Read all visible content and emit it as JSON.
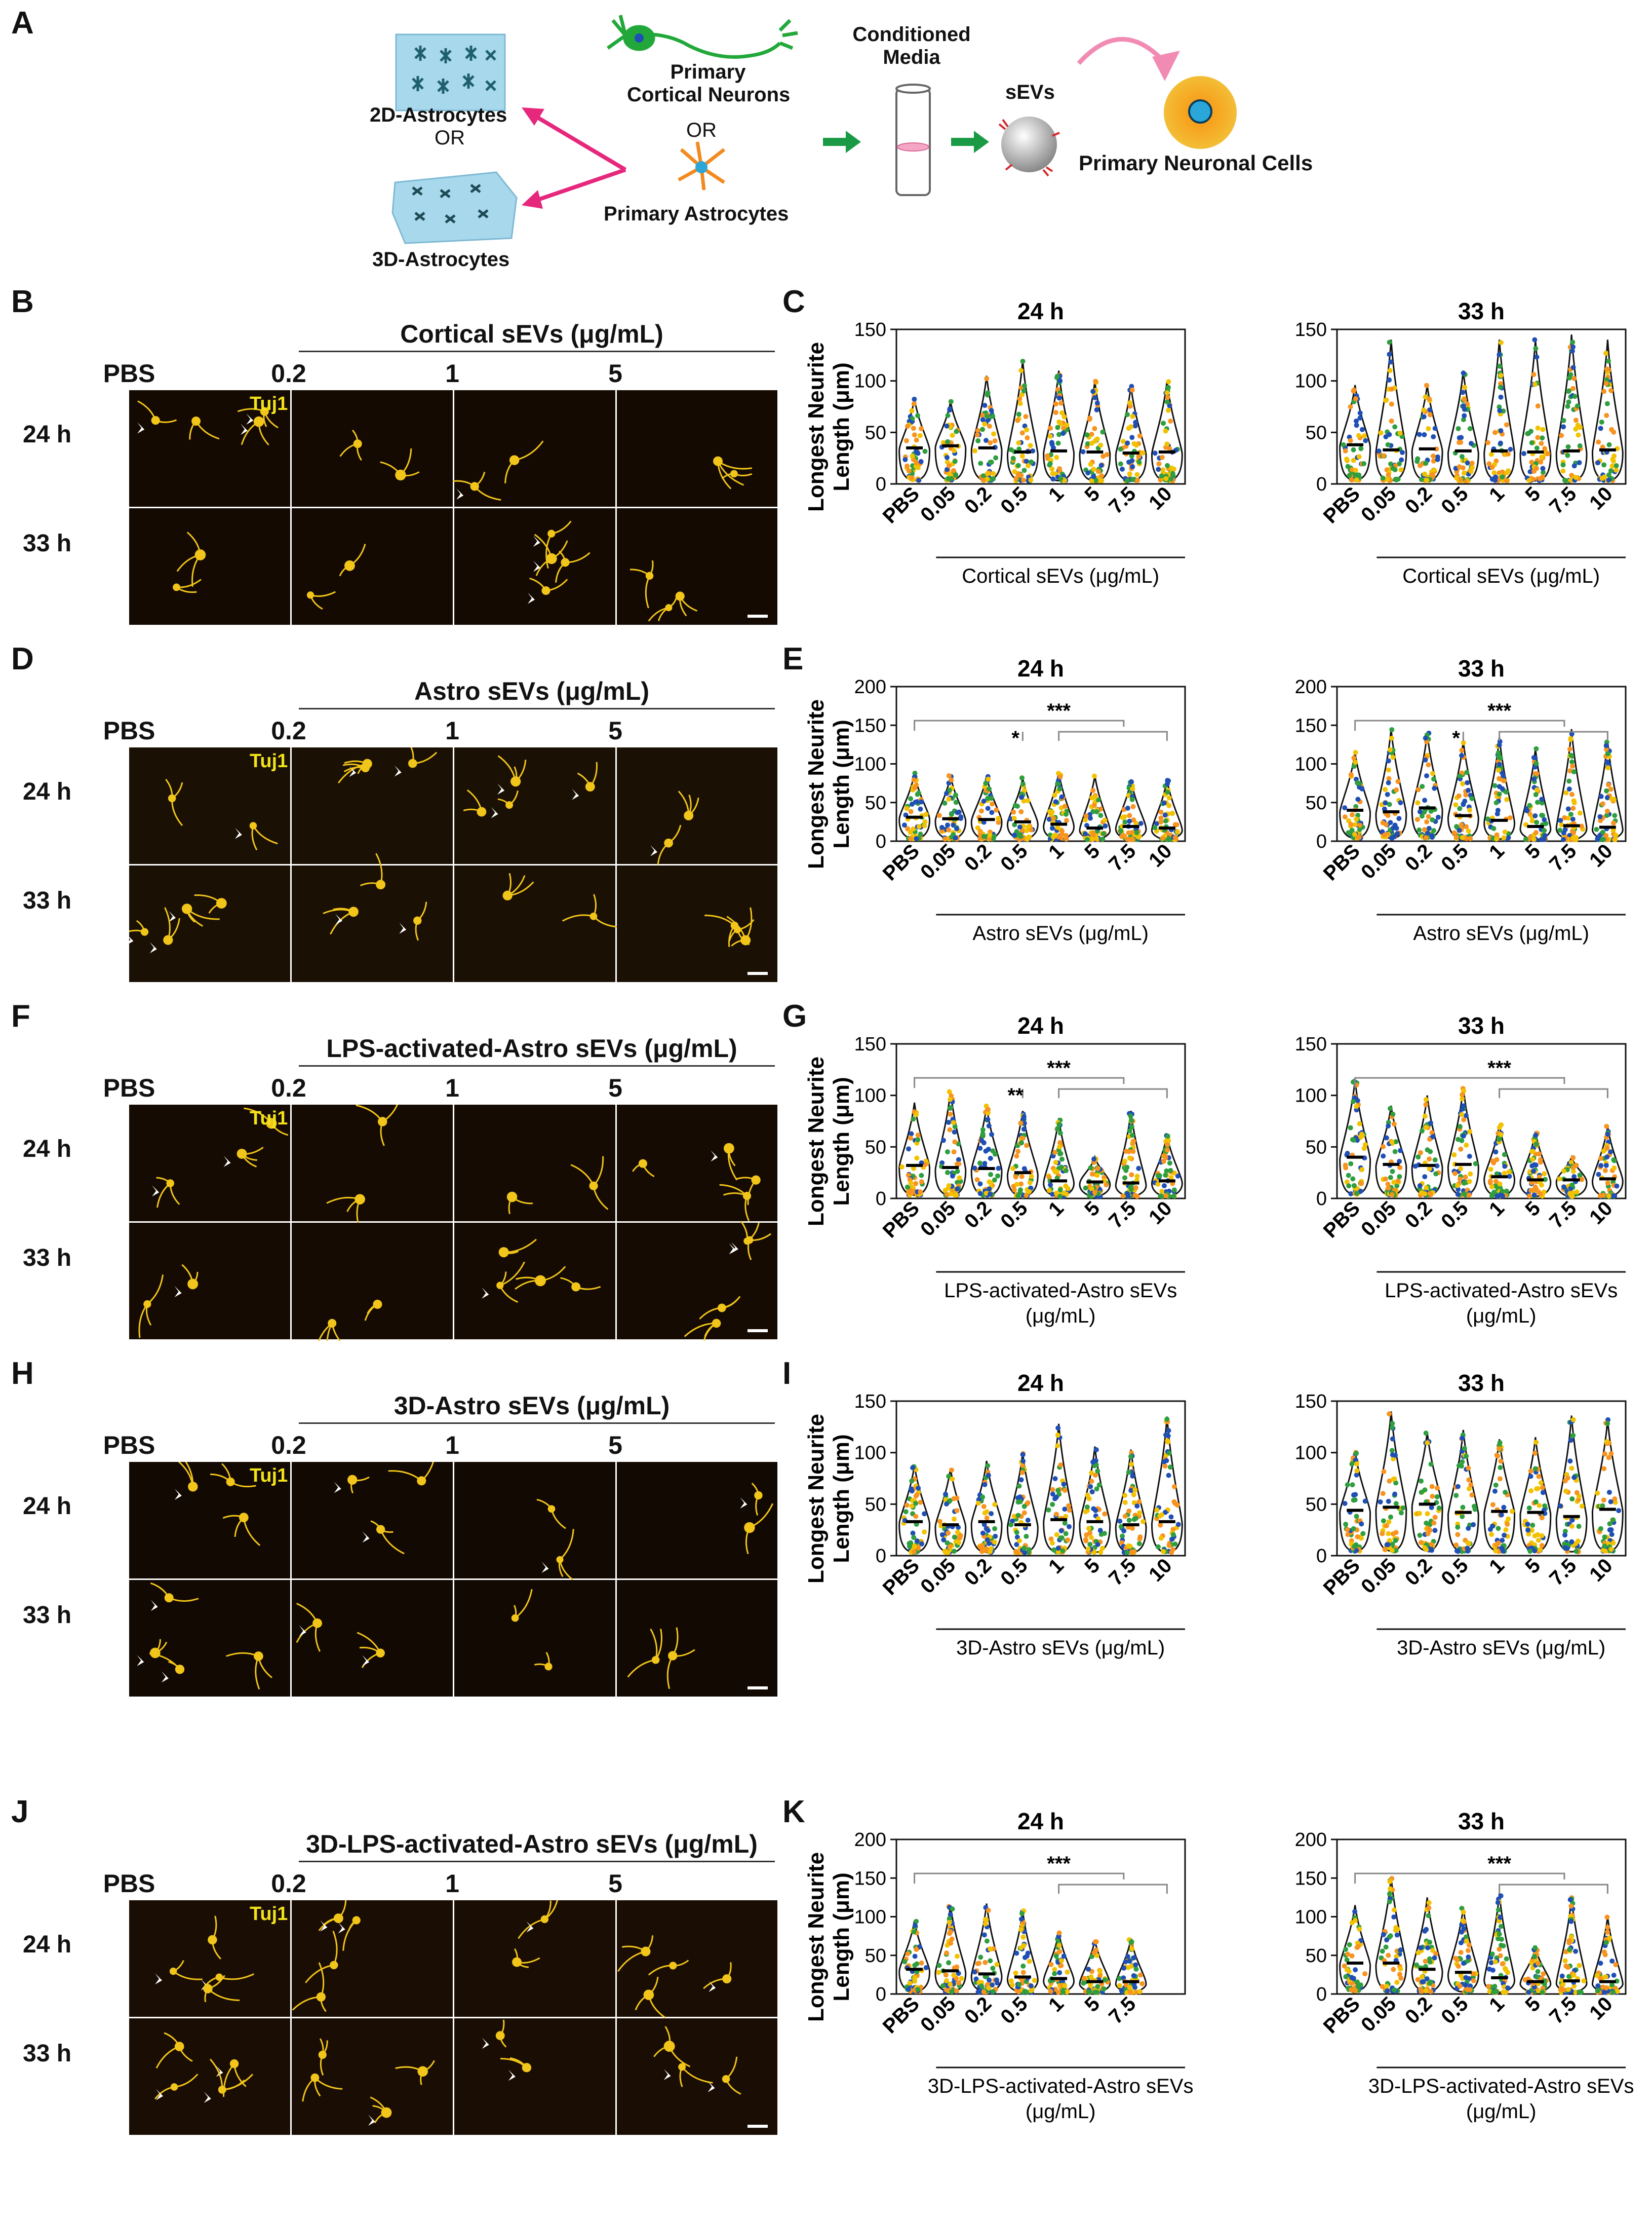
{
  "panels": {
    "A": "A",
    "B": "B",
    "C": "C",
    "D": "D",
    "E": "E",
    "F": "F",
    "G": "G",
    "H": "H",
    "I": "I",
    "J": "J",
    "K": "K"
  },
  "schematic": {
    "astro2d": "2D-Astrocytes",
    "or1": "OR",
    "astro3d": "3D-Astrocytes",
    "neurons": "Primary\nCortical Neurons",
    "or2": "OR",
    "primary_astro": "Primary Astrocytes",
    "conditioned": "Conditioned\nMedia",
    "sevs": "sEVs",
    "target": "Primary Neuronal Cells"
  },
  "micro": {
    "stain": "Tuj1",
    "pbs": "PBS",
    "conc": [
      "0.2",
      "1",
      "5"
    ],
    "rows": [
      "24 h",
      "33 h"
    ]
  },
  "rows": [
    {
      "group_title": "Cortical sEVs (μg/mL)",
      "image_bg": "#140a02"
    },
    {
      "group_title": "Astro sEVs (μg/mL)",
      "image_bg": "#1a1004"
    },
    {
      "group_title": "LPS-activated-Astro sEVs (μg/mL)",
      "image_bg": "#150b02"
    },
    {
      "group_title": "3D-Astro sEVs (μg/mL)",
      "image_bg": "#120902"
    },
    {
      "group_title": "3D-LPS-activated-Astro sEVs (μg/mL)",
      "image_bg": "#1a0d03"
    }
  ],
  "chart_data": [
    {
      "type": "violin",
      "panel": "C",
      "title": "24 h",
      "ylabel": "Longest Neurite\nLength (μm)",
      "ylim": [
        0,
        150
      ],
      "yticks": [
        0,
        50,
        100,
        150
      ],
      "categories": [
        "PBS",
        "0.05",
        "0.2",
        "0.5",
        "1",
        "5",
        "7.5",
        "10"
      ],
      "xgroup_label": "Cortical sEVs (μg/mL)",
      "medians": [
        35,
        37,
        35,
        31,
        32,
        31,
        30,
        31
      ],
      "max": [
        83,
        80,
        105,
        120,
        110,
        100,
        95,
        100
      ],
      "significance": []
    },
    {
      "type": "violin",
      "panel": "C",
      "title": "33 h",
      "ylim": [
        0,
        150
      ],
      "yticks": [
        0,
        50,
        100,
        150
      ],
      "categories": [
        "PBS",
        "0.05",
        "0.2",
        "0.5",
        "1",
        "5",
        "7.5",
        "10"
      ],
      "xgroup_label": "Cortical sEVs (μg/mL)",
      "medians": [
        38,
        33,
        34,
        32,
        32,
        31,
        32,
        33
      ],
      "max": [
        96,
        140,
        96,
        110,
        140,
        140,
        145,
        140
      ],
      "significance": []
    },
    {
      "type": "violin",
      "panel": "E",
      "title": "24 h",
      "ylabel": "Longest Neurite\nLength (μm)",
      "ylim": [
        0,
        200
      ],
      "yticks": [
        0,
        50,
        100,
        150,
        200
      ],
      "categories": [
        "PBS",
        "0.05",
        "0.2",
        "0.5",
        "1",
        "5",
        "7.5",
        "10"
      ],
      "xgroup_label": "Astro sEVs (μg/mL)",
      "medians": [
        31,
        29,
        28,
        25,
        22,
        17,
        19,
        17
      ],
      "max": [
        88,
        85,
        85,
        82,
        90,
        85,
        80,
        80
      ],
      "significance": [
        "*",
        "***"
      ]
    },
    {
      "type": "violin",
      "panel": "E",
      "title": "33 h",
      "ylim": [
        0,
        200
      ],
      "yticks": [
        0,
        50,
        100,
        150,
        200
      ],
      "categories": [
        "PBS",
        "0.05",
        "0.2",
        "0.5",
        "1",
        "5",
        "7.5",
        "10"
      ],
      "xgroup_label": "Astro sEVs (μg/mL)",
      "medians": [
        40,
        38,
        43,
        33,
        27,
        19,
        20,
        18
      ],
      "max": [
        115,
        145,
        140,
        130,
        135,
        120,
        145,
        130
      ],
      "significance": [
        "*",
        "***"
      ]
    },
    {
      "type": "violin",
      "panel": "G",
      "title": "24 h",
      "ylabel": "Longest Neurite\nLength (μm)",
      "ylim": [
        0,
        150
      ],
      "yticks": [
        0,
        50,
        100,
        150
      ],
      "categories": [
        "PBS",
        "0.05",
        "0.2",
        "0.5",
        "1",
        "5",
        "7.5",
        "10"
      ],
      "xgroup_label": "LPS-activated-Astro sEVs\n(μg/mL)",
      "medians": [
        32,
        30,
        29,
        25,
        17,
        16,
        15,
        17
      ],
      "max": [
        93,
        105,
        90,
        85,
        78,
        40,
        85,
        62
      ],
      "significance": [
        "**",
        "***"
      ]
    },
    {
      "type": "violin",
      "panel": "G",
      "title": "33 h",
      "ylim": [
        0,
        150
      ],
      "yticks": [
        0,
        50,
        100,
        150
      ],
      "categories": [
        "PBS",
        "0.05",
        "0.2",
        "0.5",
        "1",
        "5",
        "7.5",
        "10"
      ],
      "xgroup_label": "LPS-activated-Astro sEVs\n(μg/mL)",
      "medians": [
        40,
        33,
        32,
        33,
        21,
        18,
        18,
        19
      ],
      "max": [
        115,
        90,
        100,
        108,
        72,
        65,
        40,
        70
      ],
      "significance": [
        "***"
      ]
    },
    {
      "type": "violin",
      "panel": "I",
      "title": "24 h",
      "ylabel": "Longest Neurite\nLength (μm)",
      "ylim": [
        0,
        150
      ],
      "yticks": [
        0,
        50,
        100,
        150
      ],
      "categories": [
        "PBS",
        "0.05",
        "0.2",
        "0.5",
        "1",
        "5",
        "7.5",
        "10"
      ],
      "xgroup_label": "3D-Astro sEVs (μg/mL)",
      "medians": [
        33,
        30,
        33,
        30,
        35,
        33,
        30,
        33
      ],
      "max": [
        88,
        85,
        92,
        100,
        128,
        106,
        103,
        135
      ],
      "significance": []
    },
    {
      "type": "violin",
      "panel": "I",
      "title": "33 h",
      "ylim": [
        0,
        150
      ],
      "yticks": [
        0,
        50,
        100,
        150
      ],
      "categories": [
        "PBS",
        "0.05",
        "0.2",
        "0.5",
        "1",
        "5",
        "7.5",
        "10"
      ],
      "xgroup_label": "3D-Astro sEVs (μg/mL)",
      "medians": [
        44,
        47,
        50,
        42,
        43,
        42,
        38,
        45
      ],
      "max": [
        102,
        140,
        120,
        122,
        113,
        115,
        136,
        132
      ],
      "significance": []
    },
    {
      "type": "violin",
      "panel": "K",
      "title": "24 h",
      "ylabel": "Longest Neurite\nLength (μm)",
      "ylim": [
        0,
        200
      ],
      "yticks": [
        0,
        50,
        100,
        150,
        200
      ],
      "categories": [
        "PBS",
        "0.05",
        "0.2",
        "0.5",
        "1",
        "5",
        "7.5"
      ],
      "xgroup_label": "3D-LPS-activated-Astro sEVs\n(μg/mL)",
      "medians": [
        32,
        30,
        26,
        22,
        20,
        16,
        16
      ],
      "max": [
        95,
        115,
        117,
        108,
        80,
        70,
        72
      ],
      "significance": [
        "***"
      ]
    },
    {
      "type": "violin",
      "panel": "K",
      "title": "33 h",
      "ylim": [
        0,
        200
      ],
      "yticks": [
        0,
        50,
        100,
        150,
        200
      ],
      "categories": [
        "PBS",
        "0.05",
        "0.2",
        "0.5",
        "1",
        "5",
        "7.5",
        "10"
      ],
      "xgroup_label": "3D-LPS-activated-Astro sEVs\n(μg/mL)",
      "medians": [
        40,
        40,
        32,
        28,
        21,
        16,
        17,
        16
      ],
      "max": [
        115,
        152,
        125,
        112,
        130,
        60,
        125,
        100
      ],
      "significance": [
        "***"
      ]
    }
  ],
  "colors": {
    "dot_palette": [
      "#f7931e",
      "#2e9e3e",
      "#1f4fb5",
      "#f2c200"
    ],
    "neuron": "#f2c51a",
    "arrow": "#e6287d",
    "flow_arrow": "#1a9a44"
  }
}
